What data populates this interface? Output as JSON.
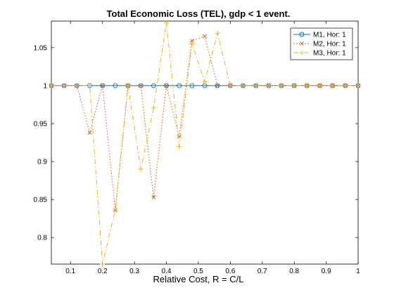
{
  "chart_data": {
    "type": "line",
    "title": "Total Economic Loss (TEL), gdp < 1 event.",
    "xlabel": "Relative Cost, R = C/L",
    "ylabel": "",
    "xlim": [
      0.04,
      1.0
    ],
    "ylim": [
      0.765,
      1.085
    ],
    "xticks": [
      0.1,
      0.2,
      0.3,
      0.4,
      0.5,
      0.6,
      0.7,
      0.8,
      0.9,
      1
    ],
    "xtick_labels": [
      "0.1",
      "0.2",
      "0.3",
      "0.4",
      "0.5",
      "0.6",
      "0.7",
      "0.8",
      "0.9",
      "1"
    ],
    "yticks": [
      0.8,
      0.85,
      0.9,
      0.95,
      1,
      1.05
    ],
    "ytick_labels": [
      "0.8",
      "0.85",
      "0.9",
      "0.95",
      "1",
      "1.05"
    ],
    "grid": false,
    "legend_position": "top-right",
    "x": [
      0.04,
      0.08,
      0.12,
      0.16,
      0.2,
      0.24,
      0.28,
      0.32,
      0.36,
      0.4,
      0.44,
      0.48,
      0.52,
      0.56,
      0.6,
      0.64,
      0.68,
      0.72,
      0.76,
      0.8,
      0.84,
      0.88,
      0.92,
      0.96,
      1.0
    ],
    "series": [
      {
        "name": "M1, Hor: 1",
        "color": "#0072BD",
        "line_style": "solid",
        "marker": "circle",
        "values": [
          1,
          1,
          1,
          1,
          1,
          1,
          1,
          1,
          1,
          1,
          1,
          1,
          1,
          1,
          1,
          1,
          1,
          1,
          1,
          1,
          1,
          1,
          1,
          1,
          1
        ]
      },
      {
        "name": "M2, Hor: 1",
        "color": "#D95319",
        "line_style": "dotted",
        "marker": "x",
        "values": [
          1,
          1,
          1,
          0.938,
          1,
          0.836,
          1,
          1,
          0.853,
          1,
          0.933,
          1.059,
          1.065,
          1,
          1,
          1,
          1,
          1,
          1,
          1,
          1,
          1,
          1,
          1,
          1
        ]
      },
      {
        "name": "M3, Hor: 1",
        "color": "#EDB120",
        "line_style": "dashdot",
        "marker": "plus",
        "values": [
          1,
          1,
          1,
          1,
          0.765,
          0.836,
          1,
          0.89,
          0.971,
          1.083,
          0.92,
          1.055,
          1.005,
          1.069,
          1,
          1,
          1,
          1,
          1,
          1,
          1,
          1,
          1,
          1,
          1
        ]
      }
    ]
  }
}
